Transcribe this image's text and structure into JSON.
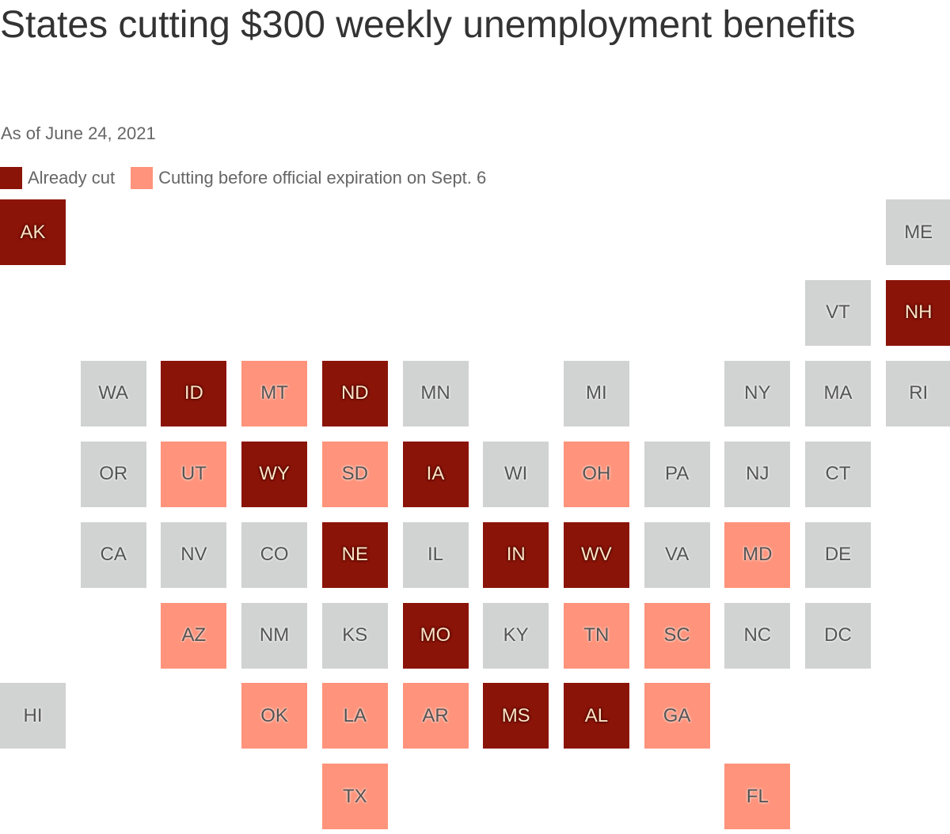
{
  "title": "States cutting $300 weekly unemployment benefits",
  "subtitle": "As of June 24, 2021",
  "legend": [
    {
      "label": "Already cut",
      "status": "cut",
      "color": "#8b1409"
    },
    {
      "label": "Cutting before official expiration on Sept. 6",
      "status": "cutting",
      "color": "#ff937b"
    }
  ],
  "colors": {
    "cut": "#8b1409",
    "cutting": "#ff937b",
    "none": "#d1d2d2"
  },
  "states": [
    {
      "abbr": "AK",
      "status": "cut"
    },
    {
      "abbr": "ME",
      "status": "none"
    },
    {
      "abbr": "VT",
      "status": "none"
    },
    {
      "abbr": "NH",
      "status": "cut"
    },
    {
      "abbr": "WA",
      "status": "none"
    },
    {
      "abbr": "ID",
      "status": "cut"
    },
    {
      "abbr": "MT",
      "status": "cutting"
    },
    {
      "abbr": "ND",
      "status": "cut"
    },
    {
      "abbr": "MN",
      "status": "none"
    },
    {
      "abbr": "MI",
      "status": "none"
    },
    {
      "abbr": "NY",
      "status": "none"
    },
    {
      "abbr": "MA",
      "status": "none"
    },
    {
      "abbr": "RI",
      "status": "none"
    },
    {
      "abbr": "OR",
      "status": "none"
    },
    {
      "abbr": "UT",
      "status": "cutting"
    },
    {
      "abbr": "WY",
      "status": "cut"
    },
    {
      "abbr": "SD",
      "status": "cutting"
    },
    {
      "abbr": "IA",
      "status": "cut"
    },
    {
      "abbr": "WI",
      "status": "none"
    },
    {
      "abbr": "OH",
      "status": "cutting"
    },
    {
      "abbr": "PA",
      "status": "none"
    },
    {
      "abbr": "NJ",
      "status": "none"
    },
    {
      "abbr": "CT",
      "status": "none"
    },
    {
      "abbr": "CA",
      "status": "none"
    },
    {
      "abbr": "NV",
      "status": "none"
    },
    {
      "abbr": "CO",
      "status": "none"
    },
    {
      "abbr": "NE",
      "status": "cut"
    },
    {
      "abbr": "IL",
      "status": "none"
    },
    {
      "abbr": "IN",
      "status": "cut"
    },
    {
      "abbr": "WV",
      "status": "cut"
    },
    {
      "abbr": "VA",
      "status": "none"
    },
    {
      "abbr": "MD",
      "status": "cutting"
    },
    {
      "abbr": "DE",
      "status": "none"
    },
    {
      "abbr": "AZ",
      "status": "cutting"
    },
    {
      "abbr": "NM",
      "status": "none"
    },
    {
      "abbr": "KS",
      "status": "none"
    },
    {
      "abbr": "MO",
      "status": "cut"
    },
    {
      "abbr": "KY",
      "status": "none"
    },
    {
      "abbr": "TN",
      "status": "cutting"
    },
    {
      "abbr": "SC",
      "status": "cutting"
    },
    {
      "abbr": "NC",
      "status": "none"
    },
    {
      "abbr": "DC",
      "status": "none"
    },
    {
      "abbr": "HI",
      "status": "none"
    },
    {
      "abbr": "OK",
      "status": "cutting"
    },
    {
      "abbr": "LA",
      "status": "cutting"
    },
    {
      "abbr": "AR",
      "status": "cutting"
    },
    {
      "abbr": "MS",
      "status": "cut"
    },
    {
      "abbr": "AL",
      "status": "cut"
    },
    {
      "abbr": "GA",
      "status": "cutting"
    },
    {
      "abbr": "TX",
      "status": "cutting"
    },
    {
      "abbr": "FL",
      "status": "cutting"
    }
  ]
}
